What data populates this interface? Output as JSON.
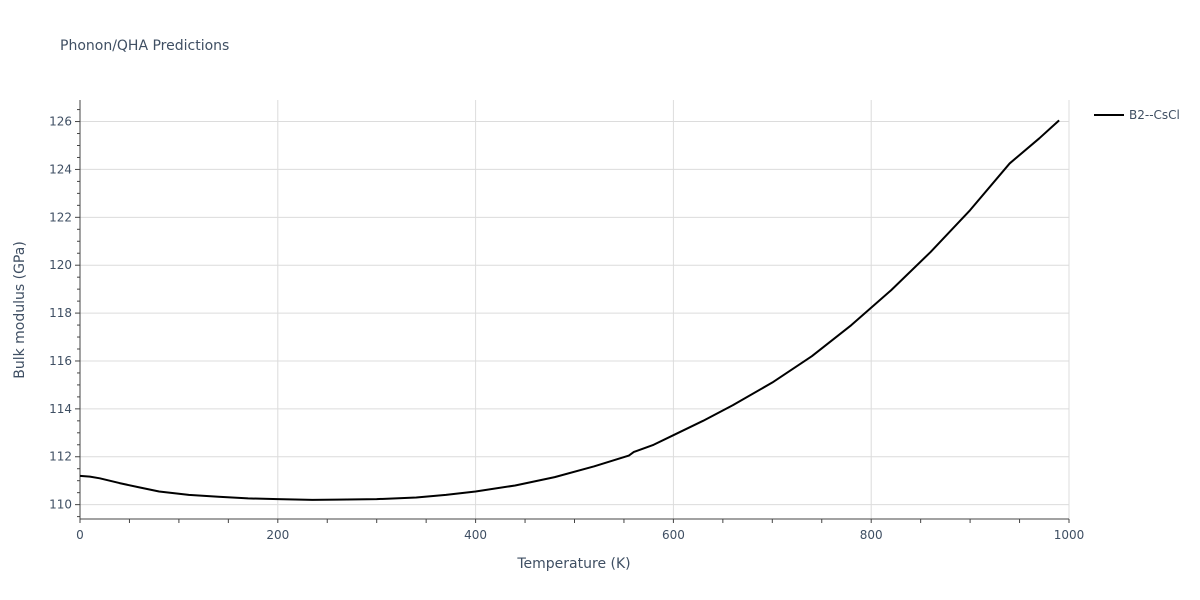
{
  "chart_data": {
    "type": "line",
    "title": "Phonon/QHA Predictions",
    "xlabel": "Temperature (K)",
    "ylabel": "Bulk modulus (GPa)",
    "xlim": [
      0,
      1000
    ],
    "ylim": [
      109.4,
      126.9
    ],
    "x_ticks": [
      0,
      200,
      400,
      600,
      800,
      1000
    ],
    "y_ticks": [
      110,
      112,
      114,
      116,
      118,
      120,
      122,
      124,
      126
    ],
    "grid": true,
    "legend_position": "top-right",
    "series": [
      {
        "name": "B2--CsCl",
        "color": "#000000",
        "x": [
          0,
          10,
          20,
          40,
          60,
          80,
          110,
          140,
          170,
          200,
          235,
          260,
          300,
          340,
          370,
          400,
          440,
          480,
          520,
          555,
          560,
          580,
          600,
          630,
          660,
          700,
          740,
          780,
          820,
          860,
          900,
          940,
          970,
          990
        ],
        "y": [
          111.2,
          111.17,
          111.1,
          110.9,
          110.72,
          110.55,
          110.41,
          110.33,
          110.26,
          110.23,
          110.2,
          110.21,
          110.23,
          110.3,
          110.41,
          110.55,
          110.8,
          111.15,
          111.6,
          112.05,
          112.2,
          112.5,
          112.9,
          113.5,
          114.15,
          115.1,
          116.2,
          117.5,
          118.95,
          120.55,
          122.3,
          124.25,
          125.3,
          126.05
        ]
      }
    ]
  }
}
